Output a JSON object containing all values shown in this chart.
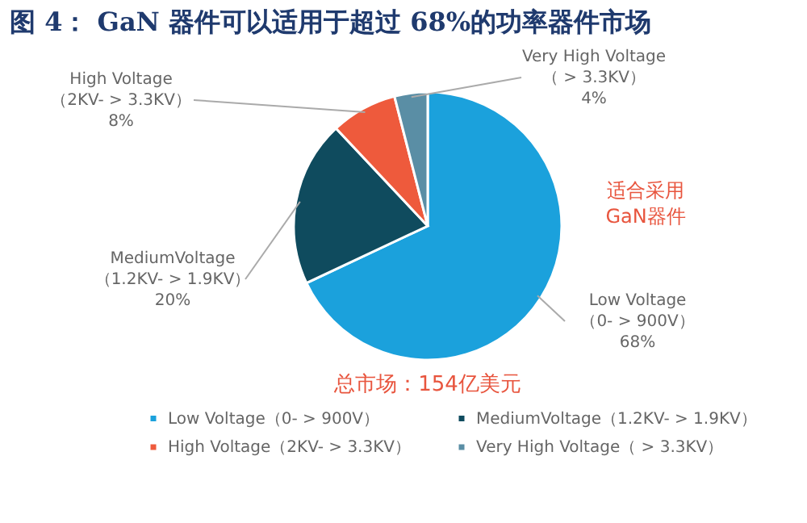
{
  "chart_data": {
    "type": "pie",
    "title": "图 4：  GaN 器件可以适用于超过 68%的功率器件市场",
    "categories": [
      "Low Voltage（0- > 900V）",
      "MediumVoltage（1.2KV- > 1.9KV）",
      "High Voltage（2KV- > 3.3KV）",
      "Very High Voltage（ > 3.3KV）"
    ],
    "values": [
      68,
      20,
      8,
      4
    ],
    "value_labels": [
      "68%",
      "20%",
      "8%",
      "4%"
    ],
    "colors": [
      "#1ba1dc",
      "#0f4b5e",
      "#ee5a3c",
      "#5a8ea5"
    ],
    "legend": "bottom",
    "annotations": [
      "适合采用\nGaN器件",
      "总市场：154亿美元"
    ]
  }
}
